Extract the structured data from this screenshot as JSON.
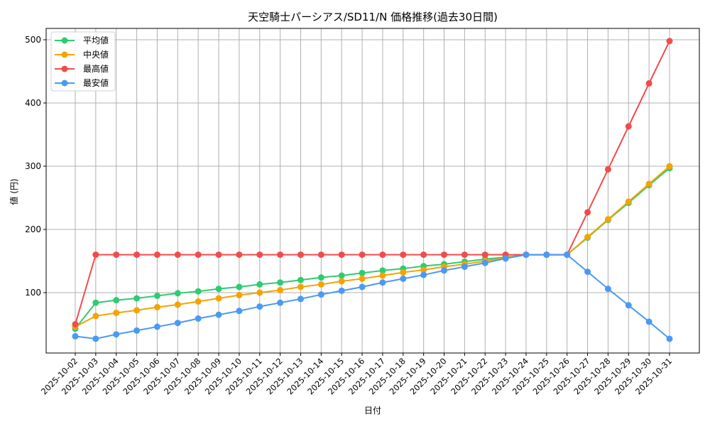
{
  "chart_data": {
    "type": "line",
    "title": "天空騎士パーシアス/SD11/N 価格推移(過去30日間)",
    "xlabel": "日付",
    "ylabel": "値 (円)",
    "ylim": [
      0,
      520
    ],
    "yticks": [
      100,
      200,
      300,
      400,
      500
    ],
    "grid": true,
    "legend_position": "upper left",
    "x": [
      "2025-10-02",
      "2025-10-03",
      "2025-10-04",
      "2025-10-05",
      "2025-10-06",
      "2025-10-07",
      "2025-10-08",
      "2025-10-09",
      "2025-10-10",
      "2025-10-11",
      "2025-10-12",
      "2025-10-13",
      "2025-10-14",
      "2025-10-15",
      "2025-10-16",
      "2025-10-17",
      "2025-10-18",
      "2025-10-19",
      "2025-10-20",
      "2025-10-21",
      "2025-10-22",
      "2025-10-23",
      "2025-10-24",
      "2025-10-25",
      "2025-10-26",
      "2025-10-27",
      "2025-10-28",
      "2025-10-29",
      "2025-10-30",
      "2025-10-31"
    ],
    "series": [
      {
        "name": "平均値",
        "color": "#2ecc71",
        "values": [
          43,
          84,
          88,
          91,
          95,
          99,
          102,
          106,
          109,
          113,
          116,
          120,
          124,
          127,
          131,
          135,
          138,
          142,
          145,
          149,
          153,
          156,
          160,
          160,
          160,
          187,
          215,
          242,
          270,
          297
        ]
      },
      {
        "name": "中央値",
        "color": "#f5a300",
        "values": [
          46,
          63,
          68,
          72,
          77,
          81,
          86,
          91,
          96,
          100,
          104,
          109,
          113,
          118,
          122,
          127,
          132,
          136,
          141,
          145,
          150,
          155,
          160,
          160,
          160,
          188,
          216,
          244,
          272,
          300
        ]
      },
      {
        "name": "最高値",
        "color": "#f24b4b",
        "values": [
          50,
          160,
          160,
          160,
          160,
          160,
          160,
          160,
          160,
          160,
          160,
          160,
          160,
          160,
          160,
          160,
          160,
          160,
          160,
          160,
          160,
          160,
          160,
          160,
          160,
          227,
          295,
          363,
          431,
          498
        ]
      },
      {
        "name": "最安値",
        "color": "#4a9af5",
        "values": [
          31,
          27,
          34,
          40,
          46,
          52,
          59,
          65,
          71,
          78,
          84,
          90,
          97,
          103,
          109,
          116,
          122,
          128,
          135,
          141,
          147,
          154,
          160,
          160,
          160,
          133,
          106,
          80,
          54,
          27
        ]
      }
    ]
  }
}
